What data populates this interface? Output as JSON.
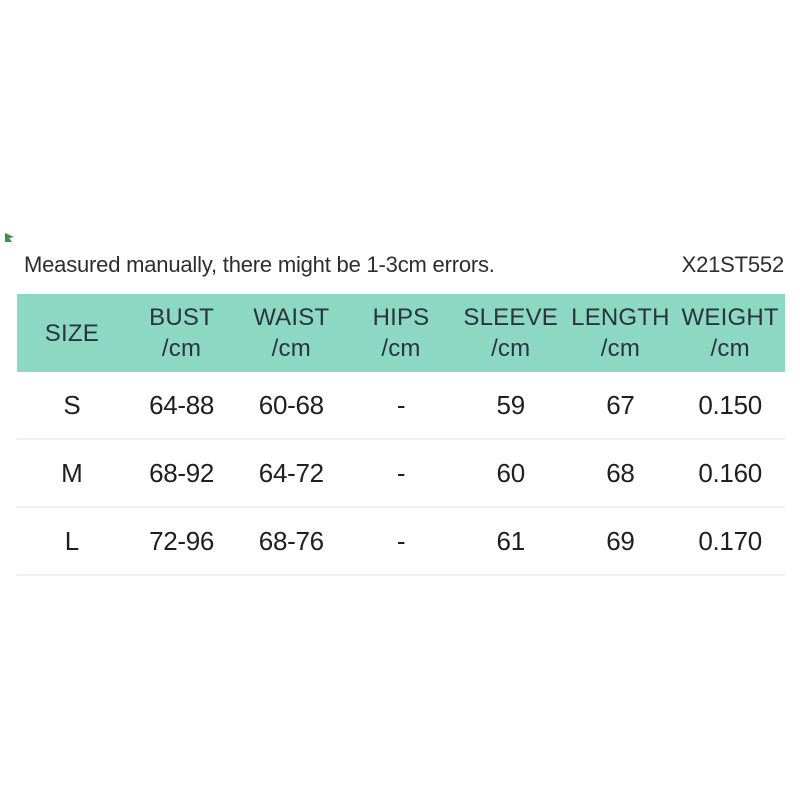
{
  "note": "Measured manually, there might be 1-3cm errors.",
  "product_code": "X21ST552",
  "colors": {
    "header_bg": "#8dd8c3",
    "header_text": "#2a343c",
    "body_text": "#1f1f1f",
    "divider": "#f1f1f1",
    "mark_green": "#3f8f4f"
  },
  "table": {
    "columns": [
      {
        "label": "SIZE",
        "unit": ""
      },
      {
        "label": "BUST",
        "unit": "/cm"
      },
      {
        "label": "WAIST",
        "unit": "/cm"
      },
      {
        "label": "HIPS",
        "unit": "/cm"
      },
      {
        "label": "SLEEVE",
        "unit": "/cm"
      },
      {
        "label": "LENGTH",
        "unit": "/cm"
      },
      {
        "label": "WEIGHT",
        "unit": "/cm"
      }
    ],
    "rows": [
      {
        "cells": [
          "S",
          "64-88",
          "60-68",
          "-",
          "59",
          "67",
          "0.150"
        ]
      },
      {
        "cells": [
          "M",
          "68-92",
          "64-72",
          "-",
          "60",
          "68",
          "0.160"
        ]
      },
      {
        "cells": [
          "L",
          "72-96",
          "68-76",
          "-",
          "61",
          "69",
          "0.170"
        ]
      }
    ]
  }
}
